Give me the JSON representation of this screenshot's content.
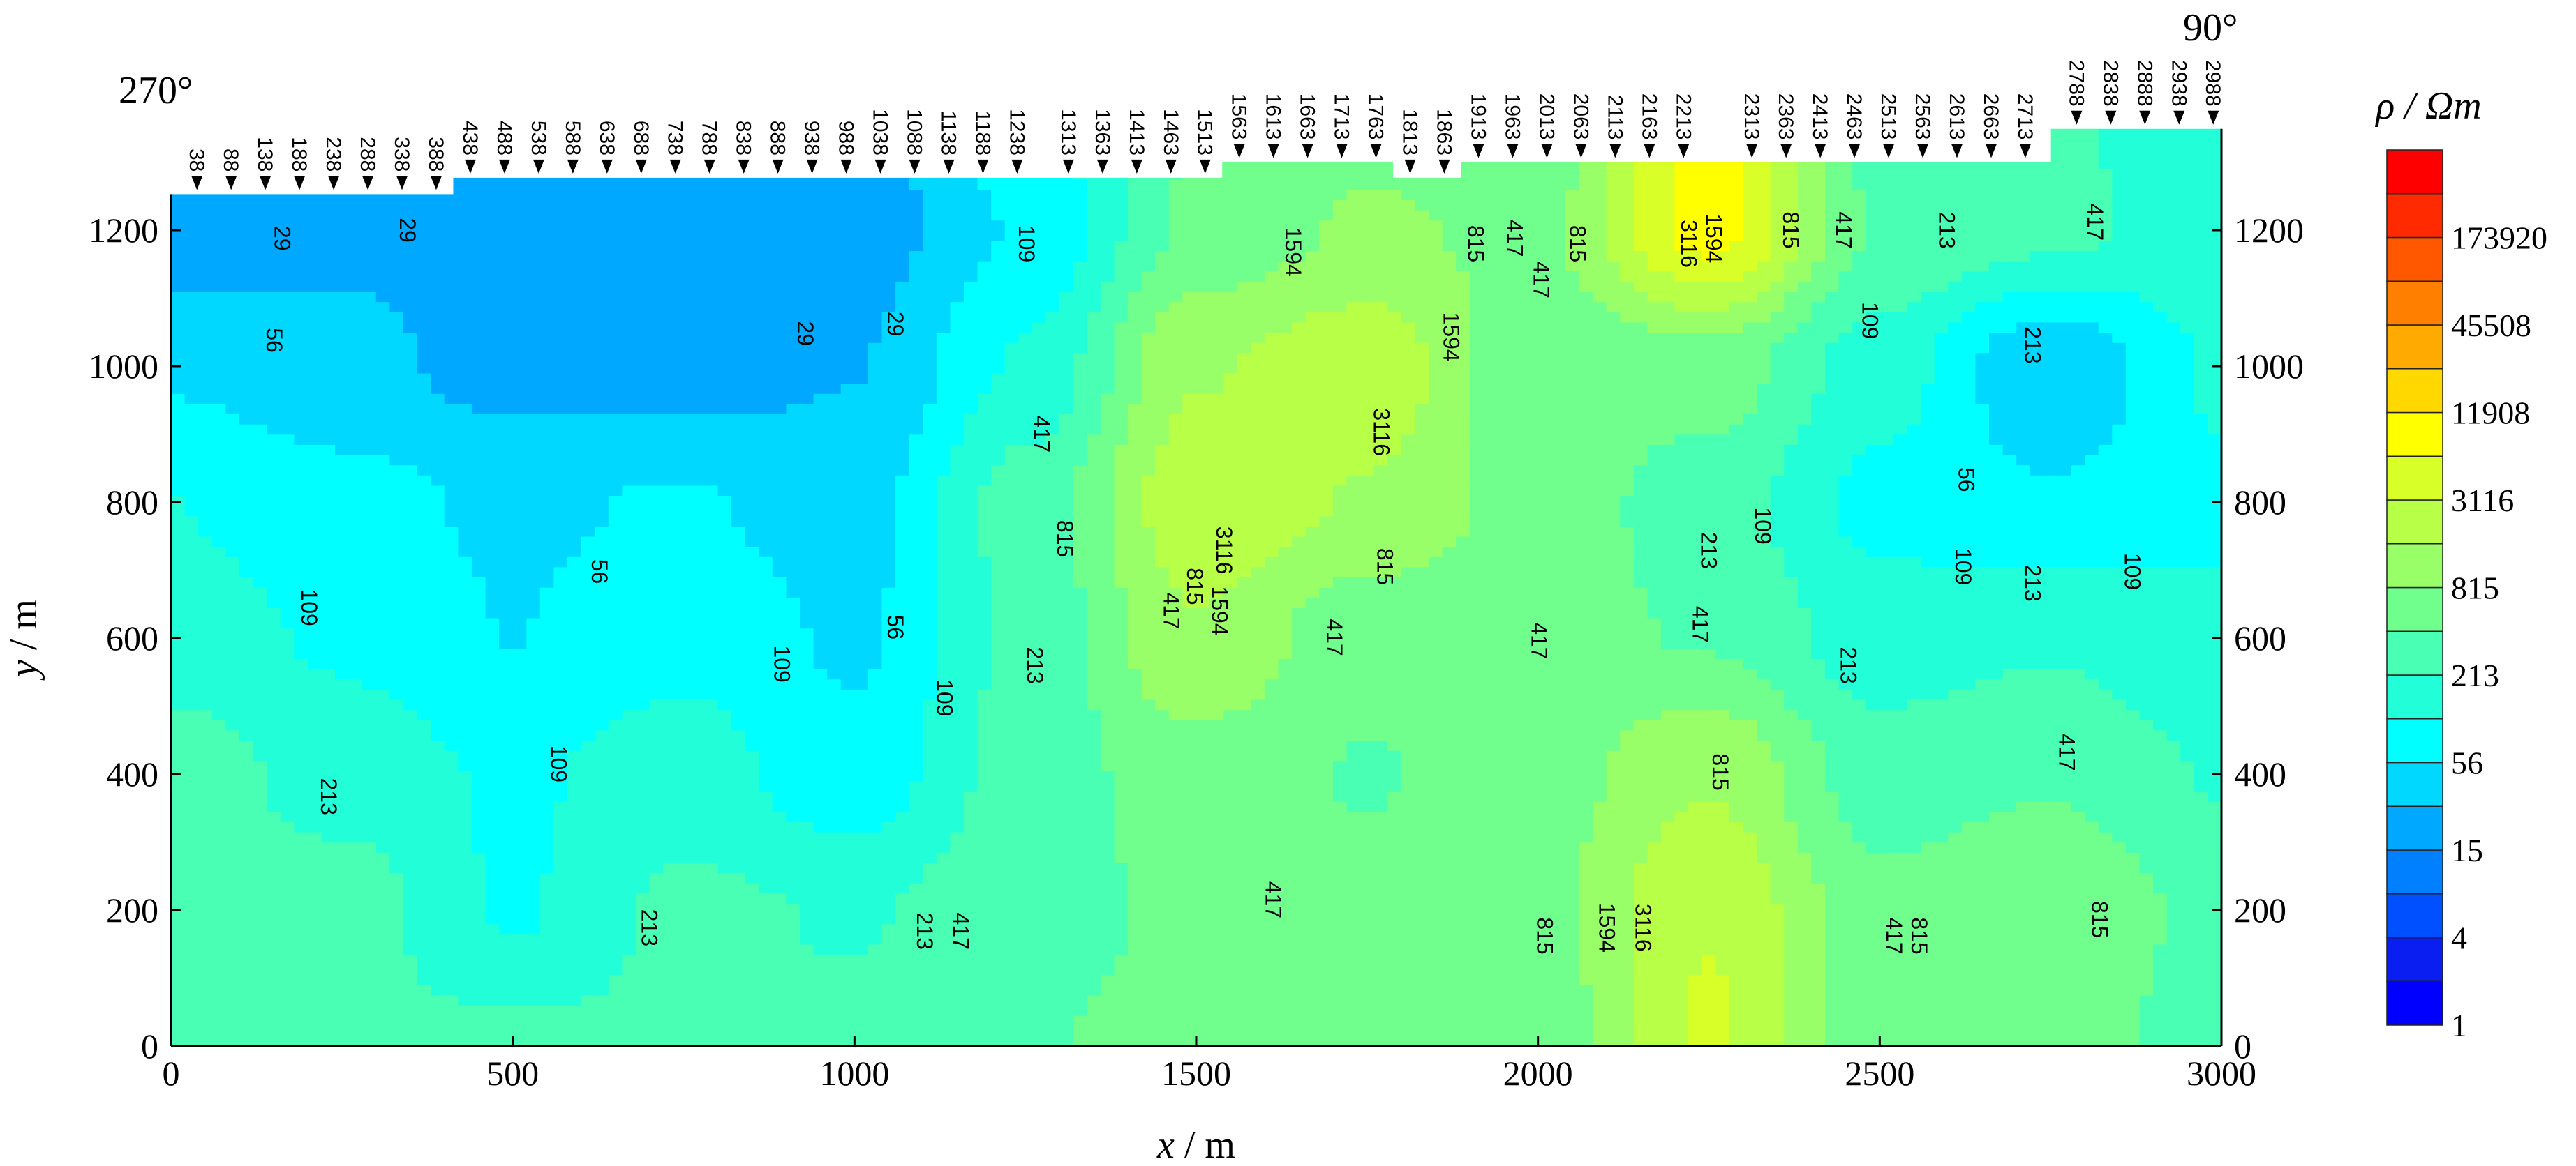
{
  "chart_data": {
    "type": "heatmap",
    "subtype": "filled-contour",
    "xlabel_var": "x",
    "xlabel_unit": " / m",
    "ylabel_var": "y",
    "ylabel_unit": " / m",
    "xlim": [
      0,
      3000
    ],
    "ylim": [
      0,
      1200
    ],
    "xticks": [
      "0",
      "500",
      "1000",
      "1500",
      "2000",
      "2500",
      "3000"
    ],
    "yticks": [
      "0",
      "200",
      "400",
      "600",
      "800",
      "1000",
      "1200"
    ],
    "direction_left": "270°",
    "direction_right": "90°",
    "colorbar": {
      "title": "ρ / Ωm",
      "labels": [
        "1",
        "4",
        "15",
        "56",
        "213",
        "815",
        "3116",
        "11908",
        "45508",
        "173920"
      ],
      "band_colors": [
        "#0000ff",
        "#0a1ef2",
        "#0050ff",
        "#0080ff",
        "#00a8ff",
        "#00d8ff",
        "#00ffff",
        "#22ffd8",
        "#48ffb4",
        "#70ff8c",
        "#98ff68",
        "#b8ff48",
        "#d8ff28",
        "#ffff00",
        "#ffd800",
        "#ffaa00",
        "#ff8000",
        "#ff5800",
        "#ff2a00",
        "#ff0000"
      ]
    },
    "grid_x": [
      0,
      250,
      500,
      750,
      1000,
      1250,
      1500,
      1750,
      2000,
      2250,
      2500,
      2750,
      3000
    ],
    "grid_y": [
      0,
      200,
      400,
      600,
      800,
      1000,
      1200,
      1350
    ],
    "resistivity": [
      [
        400,
        250,
        250,
        250,
        250,
        400,
        500,
        700,
        500,
        3500,
        500,
        600,
        300
      ],
      [
        350,
        300,
        100,
        250,
        200,
        350,
        450,
        500,
        700,
        3000,
        500,
        700,
        350
      ],
      [
        300,
        160,
        100,
        150,
        70,
        300,
        600,
        400,
        600,
        1500,
        300,
        400,
        200
      ],
      [
        150,
        100,
        55,
        90,
        50,
        250,
        1500,
        500,
        500,
        400,
        150,
        200,
        120
      ],
      [
        110,
        70,
        50,
        60,
        40,
        300,
        2500,
        1500,
        600,
        300,
        90,
        60,
        100
      ],
      [
        50,
        35,
        22,
        20,
        28,
        120,
        1500,
        2500,
        500,
        600,
        150,
        30,
        120
      ],
      [
        20,
        25,
        20,
        20,
        20,
        60,
        500,
        900,
        700,
        8000,
        400,
        250,
        150
      ],
      [
        20,
        25,
        20,
        20,
        20,
        80,
        400,
        700,
        500,
        9000,
        300,
        250,
        120
      ]
    ],
    "stations": [
      {
        "label": "38",
        "x": 38,
        "elev": 1253
      },
      {
        "label": "88",
        "x": 88,
        "elev": 1253
      },
      {
        "label": "138",
        "x": 138,
        "elev": 1253
      },
      {
        "label": "188",
        "x": 188,
        "elev": 1253
      },
      {
        "label": "238",
        "x": 238,
        "elev": 1253
      },
      {
        "label": "288",
        "x": 288,
        "elev": 1253
      },
      {
        "label": "338",
        "x": 338,
        "elev": 1253
      },
      {
        "label": "388",
        "x": 388,
        "elev": 1253
      },
      {
        "label": "438",
        "x": 438,
        "elev": 1277
      },
      {
        "label": "488",
        "x": 488,
        "elev": 1277
      },
      {
        "label": "538",
        "x": 538,
        "elev": 1277
      },
      {
        "label": "588",
        "x": 588,
        "elev": 1277
      },
      {
        "label": "638",
        "x": 638,
        "elev": 1277
      },
      {
        "label": "688",
        "x": 688,
        "elev": 1277
      },
      {
        "label": "738",
        "x": 738,
        "elev": 1277
      },
      {
        "label": "788",
        "x": 788,
        "elev": 1277
      },
      {
        "label": "838",
        "x": 838,
        "elev": 1277
      },
      {
        "label": "888",
        "x": 888,
        "elev": 1277
      },
      {
        "label": "938",
        "x": 938,
        "elev": 1277
      },
      {
        "label": "988",
        "x": 988,
        "elev": 1277
      },
      {
        "label": "1038",
        "x": 1038,
        "elev": 1277
      },
      {
        "label": "1088",
        "x": 1088,
        "elev": 1277
      },
      {
        "label": "1138",
        "x": 1138,
        "elev": 1277
      },
      {
        "label": "1188",
        "x": 1188,
        "elev": 1277
      },
      {
        "label": "1238",
        "x": 1238,
        "elev": 1277
      },
      {
        "label": "1313",
        "x": 1313,
        "elev": 1277
      },
      {
        "label": "1363",
        "x": 1363,
        "elev": 1277
      },
      {
        "label": "1413",
        "x": 1413,
        "elev": 1277
      },
      {
        "label": "1463",
        "x": 1463,
        "elev": 1277
      },
      {
        "label": "1513",
        "x": 1513,
        "elev": 1277
      },
      {
        "label": "1563",
        "x": 1563,
        "elev": 1300
      },
      {
        "label": "1613",
        "x": 1613,
        "elev": 1300
      },
      {
        "label": "1663",
        "x": 1663,
        "elev": 1300
      },
      {
        "label": "1713",
        "x": 1713,
        "elev": 1300
      },
      {
        "label": "1763",
        "x": 1763,
        "elev": 1300
      },
      {
        "label": "1813",
        "x": 1813,
        "elev": 1277
      },
      {
        "label": "1863",
        "x": 1863,
        "elev": 1277
      },
      {
        "label": "1913",
        "x": 1913,
        "elev": 1300
      },
      {
        "label": "1963",
        "x": 1963,
        "elev": 1300
      },
      {
        "label": "2013",
        "x": 2013,
        "elev": 1300
      },
      {
        "label": "2063",
        "x": 2063,
        "elev": 1300
      },
      {
        "label": "2113",
        "x": 2113,
        "elev": 1300
      },
      {
        "label": "2163",
        "x": 2163,
        "elev": 1300
      },
      {
        "label": "2213",
        "x": 2213,
        "elev": 1300
      },
      {
        "label": "2313",
        "x": 2313,
        "elev": 1300
      },
      {
        "label": "2363",
        "x": 2363,
        "elev": 1300
      },
      {
        "label": "2413",
        "x": 2413,
        "elev": 1300
      },
      {
        "label": "2463",
        "x": 2463,
        "elev": 1300
      },
      {
        "label": "2513",
        "x": 2513,
        "elev": 1300
      },
      {
        "label": "2563",
        "x": 2563,
        "elev": 1300
      },
      {
        "label": "2613",
        "x": 2613,
        "elev": 1300
      },
      {
        "label": "2663",
        "x": 2663,
        "elev": 1300
      },
      {
        "label": "2713",
        "x": 2713,
        "elev": 1300
      },
      {
        "label": "2788",
        "x": 2788,
        "elev": 1349
      },
      {
        "label": "2838",
        "x": 2838,
        "elev": 1349
      },
      {
        "label": "2888",
        "x": 2888,
        "elev": 1349
      },
      {
        "label": "2938",
        "x": 2938,
        "elev": 1349
      },
      {
        "label": "2988",
        "x": 2988,
        "elev": 1349
      }
    ],
    "contour_labels": [
      {
        "t": "29",
        "x": 163,
        "y": 1188
      },
      {
        "t": "29",
        "x": 346,
        "y": 1200
      },
      {
        "t": "56",
        "x": 151,
        "y": 1038
      },
      {
        "t": "29",
        "x": 928,
        "y": 1048
      },
      {
        "t": "29",
        "x": 1060,
        "y": 1062
      },
      {
        "t": "109",
        "x": 202,
        "y": 645
      },
      {
        "t": "56",
        "x": 627,
        "y": 698
      },
      {
        "t": "109",
        "x": 894,
        "y": 562
      },
      {
        "t": "56",
        "x": 1060,
        "y": 616
      },
      {
        "t": "109",
        "x": 1132,
        "y": 512
      },
      {
        "t": "109",
        "x": 567,
        "y": 415
      },
      {
        "t": "213",
        "x": 231,
        "y": 367
      },
      {
        "t": "213",
        "x": 700,
        "y": 174
      },
      {
        "t": "213",
        "x": 1103,
        "y": 169
      },
      {
        "t": "417",
        "x": 1156,
        "y": 169
      },
      {
        "t": "213",
        "x": 1264,
        "y": 560
      },
      {
        "t": "417",
        "x": 1274,
        "y": 900
      },
      {
        "t": "815",
        "x": 1308,
        "y": 746
      },
      {
        "t": "109",
        "x": 1252,
        "y": 1180
      },
      {
        "t": "1594",
        "x": 1642,
        "y": 1168
      },
      {
        "t": "3116",
        "x": 1541,
        "y": 729
      },
      {
        "t": "815",
        "x": 1498,
        "y": 676
      },
      {
        "t": "1594",
        "x": 1534,
        "y": 640
      },
      {
        "t": "417",
        "x": 1464,
        "y": 640
      },
      {
        "t": "417",
        "x": 1702,
        "y": 601
      },
      {
        "t": "815",
        "x": 1776,
        "y": 705
      },
      {
        "t": "3116",
        "x": 1771,
        "y": 903
      },
      {
        "t": "1594",
        "x": 1873,
        "y": 1043
      },
      {
        "t": "815",
        "x": 1909,
        "y": 1180
      },
      {
        "t": "417",
        "x": 1966,
        "y": 1188
      },
      {
        "t": "417",
        "x": 2005,
        "y": 1127
      },
      {
        "t": "815",
        "x": 2058,
        "y": 1180
      },
      {
        "t": "3116",
        "x": 2221,
        "y": 1180
      },
      {
        "t": "1594",
        "x": 2257,
        "y": 1188
      },
      {
        "t": "815",
        "x": 2370,
        "y": 1200
      },
      {
        "t": "417",
        "x": 2447,
        "y": 1200
      },
      {
        "t": "213",
        "x": 2598,
        "y": 1200
      },
      {
        "t": "417",
        "x": 2815,
        "y": 1212
      },
      {
        "t": "109",
        "x": 2486,
        "y": 1067
      },
      {
        "t": "213",
        "x": 2724,
        "y": 1031
      },
      {
        "t": "56",
        "x": 2627,
        "y": 833
      },
      {
        "t": "109",
        "x": 2329,
        "y": 765
      },
      {
        "t": "213",
        "x": 2250,
        "y": 729
      },
      {
        "t": "109",
        "x": 2622,
        "y": 705
      },
      {
        "t": "213",
        "x": 2724,
        "y": 681
      },
      {
        "t": "109",
        "x": 2870,
        "y": 698
      },
      {
        "t": "417",
        "x": 2238,
        "y": 620
      },
      {
        "t": "417",
        "x": 2002,
        "y": 596
      },
      {
        "t": "213",
        "x": 2454,
        "y": 560
      },
      {
        "t": "815",
        "x": 2267,
        "y": 403
      },
      {
        "t": "417",
        "x": 2774,
        "y": 432
      },
      {
        "t": "417",
        "x": 1613,
        "y": 215
      },
      {
        "t": "815",
        "x": 2010,
        "y": 162
      },
      {
        "t": "1594",
        "x": 2101,
        "y": 174
      },
      {
        "t": "3116",
        "x": 2154,
        "y": 174
      },
      {
        "t": "417",
        "x": 2521,
        "y": 162
      },
      {
        "t": "815",
        "x": 2558,
        "y": 162
      },
      {
        "t": "815",
        "x": 2822,
        "y": 186
      }
    ]
  }
}
